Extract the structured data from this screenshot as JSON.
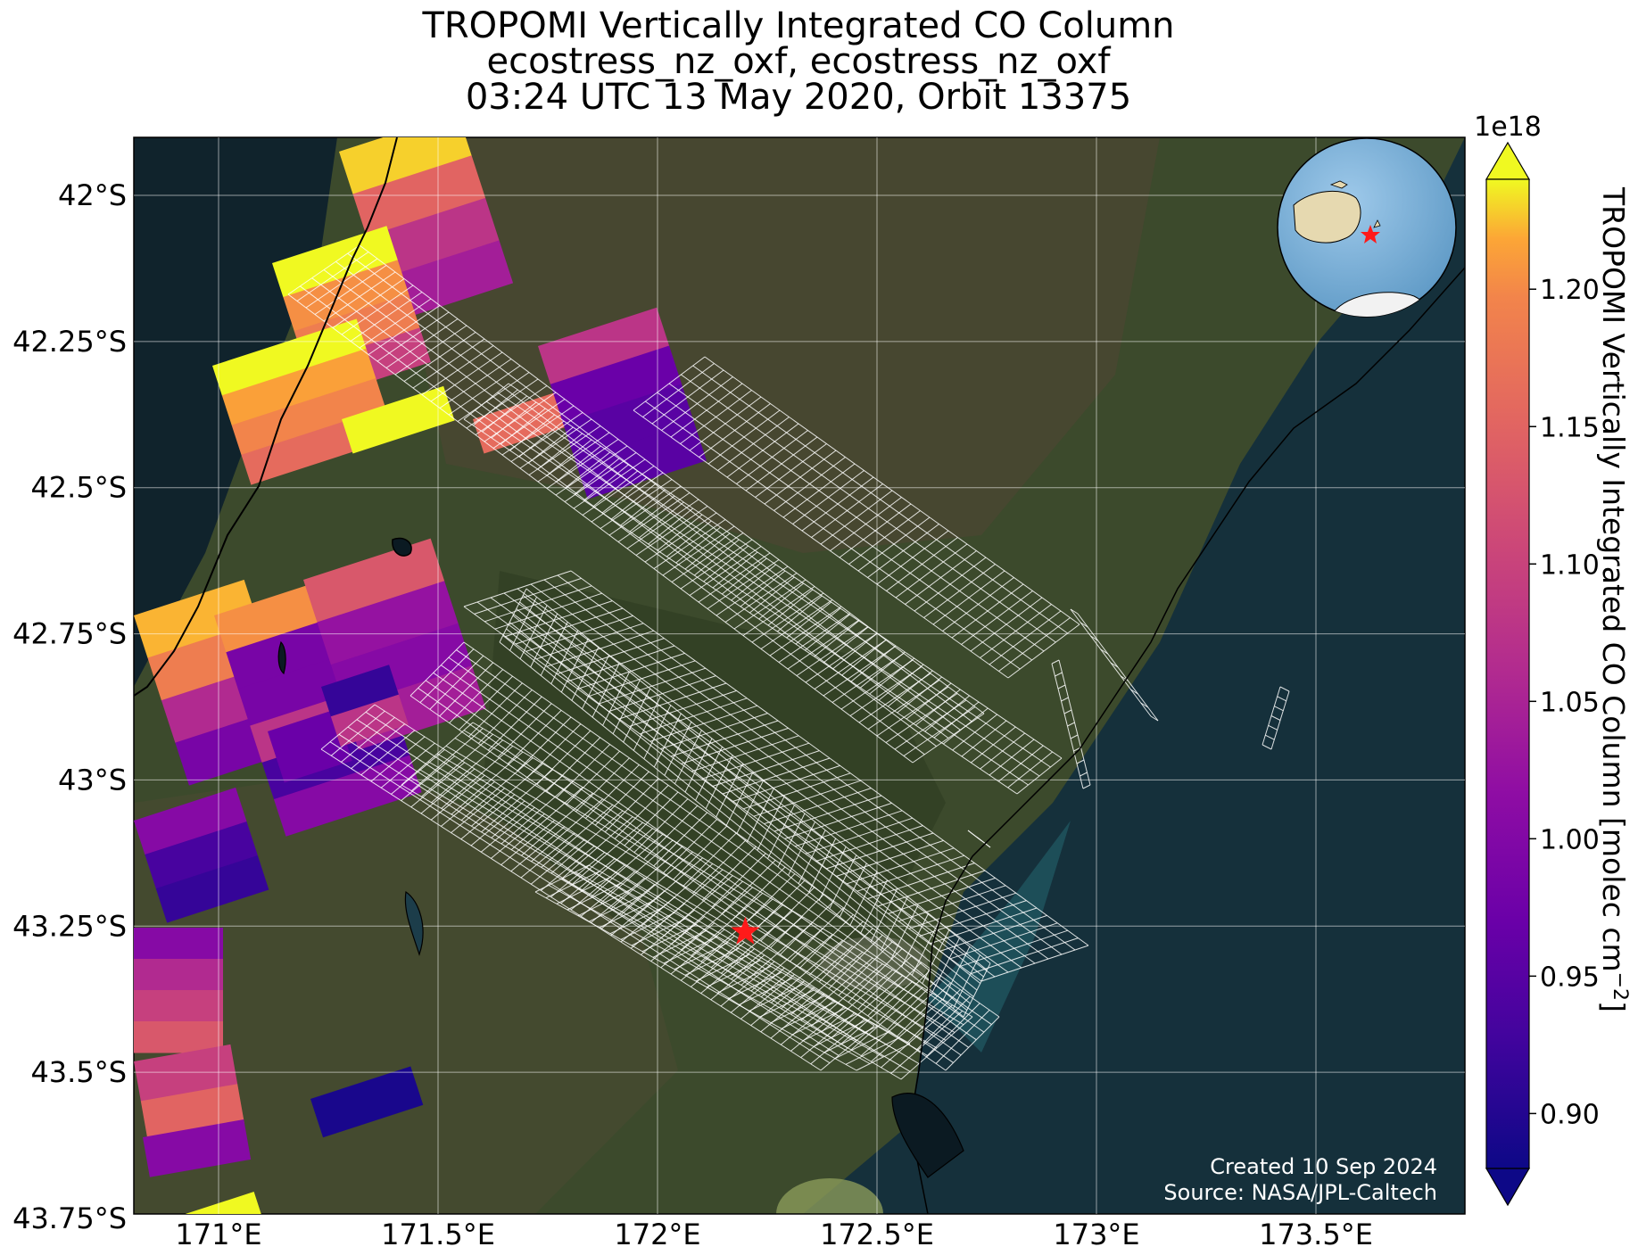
{
  "title": {
    "line1": "TROPOMI Vertically Integrated CO Column",
    "line2": "ecostress_nz_oxf, ecostress_nz_oxf",
    "line3": "03:24 UTC 13 May 2020, Orbit 13375"
  },
  "map": {
    "lon_range": [
      170.8,
      174.0
    ],
    "lat_range": [
      -43.8,
      -41.9
    ],
    "lon_ticks": [
      "171°E",
      "171.5°E",
      "172°E",
      "172.5°E",
      "173°E",
      "173.5°E"
    ],
    "lat_ticks": [
      "42°S",
      "42.25°S",
      "42.5°S",
      "42.75°S",
      "43°S",
      "43.25°S",
      "43.5°S",
      "43.75°S"
    ],
    "target_marker": "red-star",
    "target_lon": 172.2,
    "target_lat": -43.26,
    "inset": "orthographic-globe-with-red-star"
  },
  "colorbar": {
    "label": "TROPOMI Vertically Integrated CO Column [molec cm",
    "label_sup": "−2",
    "label_end": "]",
    "exponent": "1e18",
    "ticks": [
      "0.90",
      "0.95",
      "1.00",
      "1.05",
      "1.10",
      "1.15",
      "1.20"
    ],
    "range": [
      0.88,
      1.24
    ],
    "colormap": "plasma"
  },
  "notes": {
    "created": "Created 10 Sep 2024",
    "source": "Source: NASA/JPL-Caltech"
  },
  "colors": {
    "ocean": "#14262f",
    "land": "#3a4a2a",
    "grid": "#ffffff",
    "star": "#ff1a1a"
  }
}
